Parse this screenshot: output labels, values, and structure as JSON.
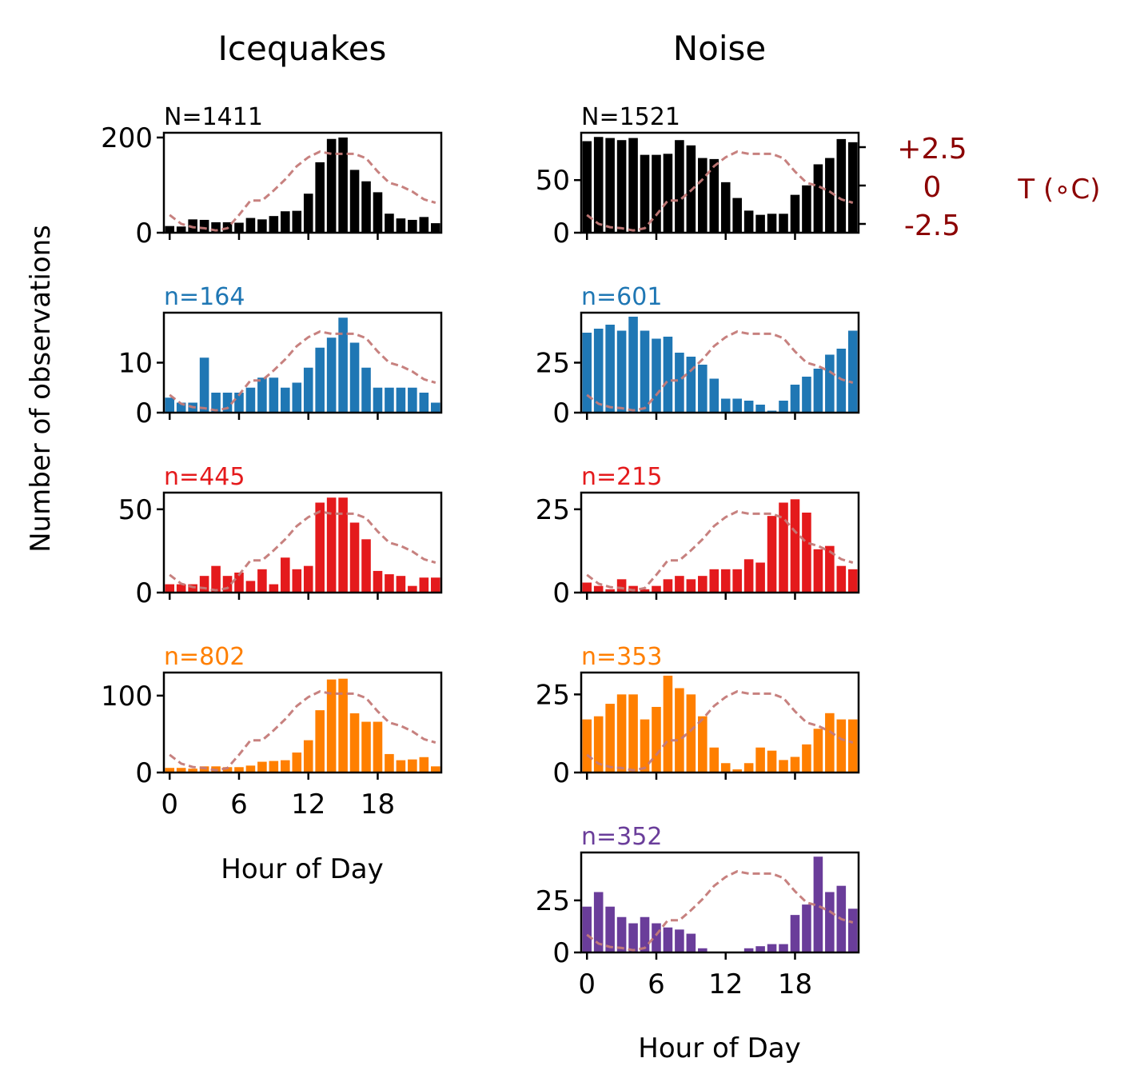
{
  "figure": {
    "col_titles": [
      "Icequakes",
      "Noise"
    ],
    "ylabel": "Number of observations",
    "xlabel": "Hour of Day",
    "temp_axis": {
      "label": "T ($^\\circ$C)",
      "label_display": "T (∘C)",
      "tick_labels": [
        "+2.5",
        "0",
        "-2.5"
      ],
      "tick_values": [
        2.5,
        0,
        -2.5
      ],
      "color": "#8b0000"
    }
  },
  "chart_data": [
    {
      "type": "bar",
      "column": "Icequakes",
      "row": 0,
      "n_label": "N=1411",
      "color": "#000000",
      "n_color": "#000000",
      "ylim": [
        0,
        210
      ],
      "yticks": [
        0,
        200
      ],
      "ytick_labels": [
        "0",
        "200"
      ],
      "x": [
        0,
        1,
        2,
        3,
        4,
        5,
        6,
        7,
        8,
        9,
        10,
        11,
        12,
        13,
        14,
        15,
        16,
        17,
        18,
        19,
        20,
        21,
        22,
        23
      ],
      "values": [
        14,
        13,
        28,
        27,
        22,
        22,
        21,
        31,
        28,
        35,
        45,
        46,
        82,
        148,
        197,
        200,
        132,
        108,
        85,
        40,
        30,
        27,
        33,
        20
      ],
      "temperature": [
        -1.9,
        -2.7,
        -3.0,
        -3.1,
        -3.3,
        -3.1,
        -1.9,
        -0.6,
        -0.6,
        0.3,
        1.3,
        2.5,
        3.3,
        3.8,
        3.6,
        3.6,
        3.6,
        3.2,
        2.0,
        1.0,
        0.7,
        0.2,
        -0.5,
        -0.8
      ]
    },
    {
      "type": "bar",
      "column": "Icequakes",
      "row": 1,
      "n_label": "n=164",
      "color": "#1f77b4",
      "n_color": "#1f77b4",
      "ylim": [
        0,
        20
      ],
      "yticks": [
        0,
        10
      ],
      "ytick_labels": [
        "0",
        "10"
      ],
      "x": [
        0,
        1,
        2,
        3,
        4,
        5,
        6,
        7,
        8,
        9,
        10,
        11,
        12,
        13,
        14,
        15,
        16,
        17,
        18,
        19,
        20,
        21,
        22,
        23
      ],
      "values": [
        3,
        2,
        2,
        11,
        4,
        4,
        4,
        5,
        7,
        7,
        5,
        6,
        9,
        13,
        15,
        19,
        14,
        9,
        5,
        5,
        5,
        5,
        4,
        2
      ],
      "temperature": [
        -1.9,
        -2.7,
        -3.0,
        -3.1,
        -3.3,
        -3.1,
        -1.9,
        -0.6,
        -0.6,
        0.3,
        1.3,
        2.5,
        3.3,
        3.8,
        3.6,
        3.6,
        3.6,
        3.2,
        2.0,
        1.0,
        0.7,
        0.2,
        -0.5,
        -0.8
      ]
    },
    {
      "type": "bar",
      "column": "Icequakes",
      "row": 2,
      "n_label": "n=445",
      "color": "#e41a1c",
      "n_color": "#e41a1c",
      "ylim": [
        0,
        60
      ],
      "yticks": [
        0,
        50
      ],
      "ytick_labels": [
        "0",
        "50"
      ],
      "x": [
        0,
        1,
        2,
        3,
        4,
        5,
        6,
        7,
        8,
        9,
        10,
        11,
        12,
        13,
        14,
        15,
        16,
        17,
        18,
        19,
        20,
        21,
        22,
        23
      ],
      "values": [
        5,
        5,
        5,
        10,
        16,
        10,
        12,
        7,
        14,
        5,
        21,
        14,
        16,
        54,
        57,
        57,
        42,
        32,
        13,
        11,
        10,
        4,
        9,
        9
      ],
      "temperature": [
        -1.9,
        -2.7,
        -3.0,
        -3.1,
        -3.3,
        -3.1,
        -1.9,
        -0.6,
        -0.6,
        0.3,
        1.3,
        2.5,
        3.3,
        3.8,
        3.6,
        3.6,
        3.6,
        3.2,
        2.0,
        1.0,
        0.7,
        0.2,
        -0.5,
        -0.8
      ]
    },
    {
      "type": "bar",
      "column": "Icequakes",
      "row": 3,
      "n_label": "n=802",
      "color": "#ff7f00",
      "n_color": "#ff7f00",
      "ylim": [
        0,
        130
      ],
      "yticks": [
        0,
        100
      ],
      "ytick_labels": [
        "0",
        "100"
      ],
      "x": [
        0,
        1,
        2,
        3,
        4,
        5,
        6,
        7,
        8,
        9,
        10,
        11,
        12,
        13,
        14,
        15,
        16,
        17,
        18,
        19,
        20,
        21,
        22,
        23
      ],
      "values": [
        6,
        6,
        5,
        8,
        8,
        7,
        7,
        9,
        14,
        15,
        16,
        26,
        42,
        81,
        121,
        122,
        77,
        66,
        66,
        24,
        16,
        17,
        20,
        8
      ],
      "temperature": [
        -1.9,
        -2.7,
        -3.0,
        -3.1,
        -3.3,
        -3.1,
        -1.9,
        -0.6,
        -0.6,
        0.3,
        1.3,
        2.5,
        3.3,
        3.8,
        3.6,
        3.6,
        3.6,
        3.2,
        2.0,
        1.0,
        0.7,
        0.2,
        -0.5,
        -0.8
      ]
    },
    {
      "type": "bar",
      "column": "Noise",
      "row": 0,
      "n_label": "N=1521",
      "color": "#000000",
      "n_color": "#000000",
      "ylim": [
        0,
        95
      ],
      "yticks": [
        0,
        50
      ],
      "ytick_labels": [
        "0",
        "50"
      ],
      "x": [
        0,
        1,
        2,
        3,
        4,
        5,
        6,
        7,
        8,
        9,
        10,
        11,
        12,
        13,
        14,
        15,
        16,
        17,
        18,
        19,
        20,
        21,
        22,
        23
      ],
      "values": [
        87,
        91,
        90,
        88,
        90,
        74,
        74,
        75,
        88,
        83,
        71,
        70,
        48,
        33,
        21,
        17,
        18,
        18,
        36,
        45,
        65,
        71,
        89,
        86
      ],
      "temperature": [
        -1.9,
        -2.7,
        -3.0,
        -3.1,
        -3.3,
        -3.1,
        -1.9,
        -0.6,
        -0.6,
        0.3,
        1.3,
        2.5,
        3.3,
        3.8,
        3.6,
        3.6,
        3.6,
        3.2,
        2.0,
        1.0,
        0.7,
        0.2,
        -0.5,
        -0.8
      ]
    },
    {
      "type": "bar",
      "column": "Noise",
      "row": 1,
      "n_label": "n=601",
      "color": "#1f77b4",
      "n_color": "#1f77b4",
      "ylim": [
        0,
        50
      ],
      "yticks": [
        0,
        25
      ],
      "ytick_labels": [
        "0",
        "25"
      ],
      "x": [
        0,
        1,
        2,
        3,
        4,
        5,
        6,
        7,
        8,
        9,
        10,
        11,
        12,
        13,
        14,
        15,
        16,
        17,
        18,
        19,
        20,
        21,
        22,
        23
      ],
      "values": [
        40,
        42,
        44,
        41,
        48,
        41,
        37,
        38,
        30,
        28,
        24,
        17,
        7,
        7,
        6,
        4,
        1,
        6,
        14,
        18,
        22,
        29,
        32,
        41
      ],
      "temperature": [
        -1.9,
        -2.7,
        -3.0,
        -3.1,
        -3.3,
        -3.1,
        -1.9,
        -0.6,
        -0.6,
        0.3,
        1.3,
        2.5,
        3.3,
        3.8,
        3.6,
        3.6,
        3.6,
        3.2,
        2.0,
        1.0,
        0.7,
        0.2,
        -0.5,
        -0.8
      ]
    },
    {
      "type": "bar",
      "column": "Noise",
      "row": 2,
      "n_label": "n=215",
      "color": "#e41a1c",
      "n_color": "#e41a1c",
      "ylim": [
        0,
        30
      ],
      "yticks": [
        0,
        25
      ],
      "ytick_labels": [
        "0",
        "25"
      ],
      "x": [
        0,
        1,
        2,
        3,
        4,
        5,
        6,
        7,
        8,
        9,
        10,
        11,
        12,
        13,
        14,
        15,
        16,
        17,
        18,
        19,
        20,
        21,
        22,
        23
      ],
      "values": [
        3,
        2,
        1,
        4,
        2,
        1,
        2,
        4,
        5,
        4,
        5,
        7,
        7,
        7,
        10,
        9,
        23,
        27,
        28,
        24,
        13,
        14,
        8,
        7
      ],
      "temperature": [
        -1.9,
        -2.7,
        -3.0,
        -3.1,
        -3.3,
        -3.1,
        -1.9,
        -0.6,
        -0.6,
        0.3,
        1.3,
        2.5,
        3.3,
        3.8,
        3.6,
        3.6,
        3.6,
        3.2,
        2.0,
        1.0,
        0.7,
        0.2,
        -0.5,
        -0.8
      ]
    },
    {
      "type": "bar",
      "column": "Noise",
      "row": 3,
      "n_label": "n=353",
      "color": "#ff7f00",
      "n_color": "#ff7f00",
      "ylim": [
        0,
        32
      ],
      "yticks": [
        0,
        25
      ],
      "ytick_labels": [
        "0",
        "25"
      ],
      "x": [
        0,
        1,
        2,
        3,
        4,
        5,
        6,
        7,
        8,
        9,
        10,
        11,
        12,
        13,
        14,
        15,
        16,
        17,
        18,
        19,
        20,
        21,
        22,
        23
      ],
      "values": [
        17,
        18,
        22,
        25,
        25,
        17,
        21,
        31,
        27,
        25,
        18,
        8,
        3,
        1,
        3,
        8,
        7,
        4,
        5,
        9,
        14,
        19,
        17,
        17
      ],
      "temperature": [
        -1.9,
        -2.7,
        -3.0,
        -3.1,
        -3.3,
        -3.1,
        -1.9,
        -0.6,
        -0.6,
        0.3,
        1.3,
        2.5,
        3.3,
        3.8,
        3.6,
        3.6,
        3.6,
        3.2,
        2.0,
        1.0,
        0.7,
        0.2,
        -0.5,
        -0.8
      ]
    },
    {
      "type": "bar",
      "column": "Noise",
      "row": 4,
      "n_label": "n=352",
      "color": "#6a3d9a",
      "n_color": "#6a3d9a",
      "ylim": [
        0,
        48
      ],
      "yticks": [
        0,
        25
      ],
      "ytick_labels": [
        "0",
        "25"
      ],
      "x": [
        0,
        1,
        2,
        3,
        4,
        5,
        6,
        7,
        8,
        9,
        10,
        11,
        12,
        13,
        14,
        15,
        16,
        17,
        18,
        19,
        20,
        21,
        22,
        23
      ],
      "values": [
        22,
        29,
        22,
        17,
        14,
        17,
        14,
        12,
        11,
        9,
        2,
        0,
        0,
        0,
        2,
        3,
        4,
        4,
        18,
        23,
        46,
        29,
        32,
        21
      ],
      "temperature": [
        -1.9,
        -2.7,
        -3.0,
        -3.1,
        -3.3,
        -3.1,
        -1.9,
        -0.6,
        -0.6,
        0.3,
        1.3,
        2.5,
        3.3,
        3.8,
        3.6,
        3.6,
        3.6,
        3.2,
        2.0,
        1.0,
        0.7,
        0.2,
        -0.5,
        -0.8
      ]
    }
  ],
  "x_axis": {
    "xlim": [
      -0.5,
      23.5
    ],
    "ticks": [
      0,
      6,
      12,
      18
    ],
    "tick_labels": [
      "0",
      "6",
      "12",
      "18"
    ]
  },
  "temp_line": {
    "color": "#c47a78",
    "style": "dashed",
    "ylim": [
      -3.5,
      5.5
    ]
  }
}
